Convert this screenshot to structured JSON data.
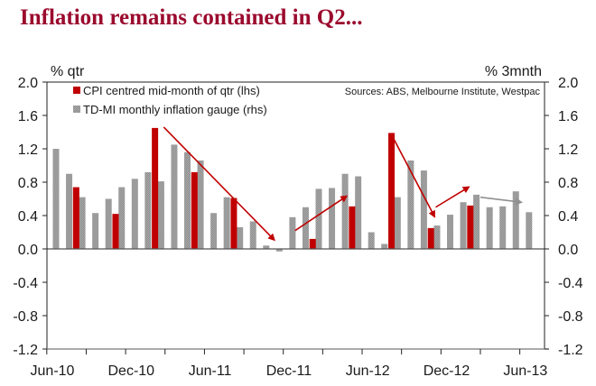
{
  "title": "Inflation remains contained in Q2...",
  "chart_data": {
    "type": "bar",
    "title": "Inflation remains contained in Q2...",
    "left_axis_label": "% qtr",
    "right_axis_label": "% 3mnth",
    "source": "Sources: ABS, Melbourne Institute, Westpac",
    "ylim": [
      -1.2,
      2.0
    ],
    "yticks": [
      "2.0",
      "1.6",
      "1.2",
      "0.8",
      "0.4",
      "0.0",
      "-0.4",
      "-0.8",
      "-1.2"
    ],
    "ytick_values": [
      2.0,
      1.6,
      1.2,
      0.8,
      0.4,
      0.0,
      -0.4,
      -0.8,
      -1.2
    ],
    "x_tick_labels": [
      "Jun-10",
      "Dec-10",
      "Jun-11",
      "Dec-11",
      "Jun-12",
      "Dec-12",
      "Jun-13"
    ],
    "x_tick_month_index": [
      0,
      6,
      12,
      18,
      24,
      30,
      36
    ],
    "grid": false,
    "legend": {
      "placement": "top-left",
      "entries": [
        {
          "label": "CPI centred mid-month of qtr (lhs)",
          "color": "#c00000"
        },
        {
          "label": "TD-MI monthly inflation gauge (rhs)",
          "color": "#a6a6a6"
        }
      ]
    },
    "series": [
      {
        "name": "TD-MI monthly inflation gauge (rhs)",
        "axis": "right",
        "color": "#a6a6a6",
        "month_index": [
          0,
          1,
          2,
          3,
          4,
          5,
          6,
          7,
          8,
          9,
          10,
          11,
          12,
          13,
          14,
          15,
          16,
          17,
          18,
          19,
          20,
          21,
          22,
          23,
          24,
          25,
          26,
          27,
          28,
          29,
          30,
          31,
          32,
          33,
          34,
          35,
          36
        ],
        "values": [
          1.2,
          0.9,
          0.62,
          0.43,
          0.6,
          0.74,
          0.84,
          0.92,
          0.81,
          1.25,
          1.16,
          1.06,
          0.43,
          0.62,
          0.26,
          0.33,
          0.04,
          -0.03,
          0.38,
          0.5,
          0.72,
          0.73,
          0.9,
          0.87,
          0.2,
          0.06,
          0.62,
          1.06,
          0.94,
          0.28,
          0.41,
          0.56,
          0.65,
          0.5,
          0.51,
          0.69,
          0.44
        ]
      },
      {
        "name": "CPI centred mid-month of qtr (lhs)",
        "axis": "left",
        "color": "#c00000",
        "month_index": [
          1.5,
          4.5,
          7.5,
          10.5,
          13.5,
          16.5,
          19.5,
          22.5,
          25.5,
          28.5,
          31.5
        ],
        "values": [
          0.74,
          0.42,
          1.45,
          0.92,
          0.61,
          0.0,
          0.12,
          0.51,
          1.39,
          0.25,
          0.52
        ]
      }
    ],
    "annotations": [
      {
        "type": "arrow",
        "color": "#c00000",
        "from": {
          "month": 8.2,
          "value": 1.46
        },
        "to": {
          "month": 16.6,
          "value": 0.11
        }
      },
      {
        "type": "arrow",
        "color": "#c00000",
        "from": {
          "month": 18.2,
          "value": 0.22
        },
        "to": {
          "month": 22.1,
          "value": 0.63
        }
      },
      {
        "type": "arrow",
        "color": "#c00000",
        "from": {
          "month": 25.7,
          "value": 1.32
        },
        "to": {
          "month": 28.8,
          "value": 0.39
        }
      },
      {
        "type": "arrow",
        "color": "#c00000",
        "from": {
          "month": 28.9,
          "value": 0.5
        },
        "to": {
          "month": 31.4,
          "value": 0.74
        }
      },
      {
        "type": "arrow",
        "color": "#909090",
        "from": {
          "month": 32.3,
          "value": 0.62
        },
        "to": {
          "month": 35.4,
          "value": 0.56
        }
      }
    ]
  }
}
